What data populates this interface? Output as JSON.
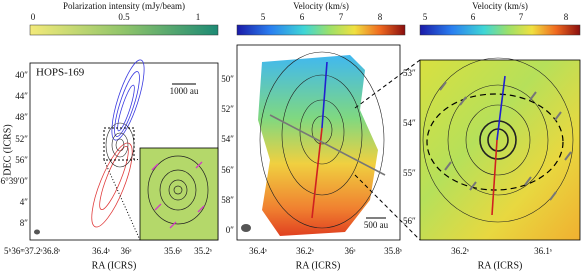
{
  "panels": [
    {
      "colorbar": {
        "label": "Polarization intensity (mJy/beam)",
        "ticks": [
          "0",
          "0.5",
          "1"
        ]
      },
      "source": "HOPS-169",
      "scale_bar": "1000 au",
      "x_label": "RA (ICRS)",
      "y_label": "DEC (ICRS)",
      "x_ticks": [
        "5ʰ36ᵐ37.2ˢ36.8ˢ",
        "36.4ˢ",
        "36ˢ",
        "35.6ˢ",
        "35.2ˢ"
      ],
      "y_ticks": [
        "40″",
        "44″",
        "48″",
        "52″",
        "56″",
        "-6°39′0″",
        "4″",
        "8″"
      ]
    },
    {
      "colorbar": {
        "label": "Velocity (km/s)",
        "ticks": [
          "5",
          "6",
          "7",
          "8"
        ]
      },
      "scale_bar": "500 au",
      "x_label": "RA (ICRS)",
      "x_ticks": [
        "36.4ˢ",
        "36.2ˢ",
        "36ˢ",
        "35.8ˢ"
      ],
      "y_ticks": [
        "50″",
        "52″",
        "54″",
        "56″",
        "58″",
        "0″"
      ],
      "y_ticks_right": [
        "53″",
        "54″",
        "55″",
        "56″"
      ]
    },
    {
      "colorbar": {
        "label": "Velocity (km/s)",
        "ticks": [
          "5",
          "6",
          "7",
          "8"
        ]
      },
      "x_label": "RA (ICRS)",
      "x_ticks": [
        "36.2ˢ",
        "36.1ˢ"
      ]
    }
  ]
}
